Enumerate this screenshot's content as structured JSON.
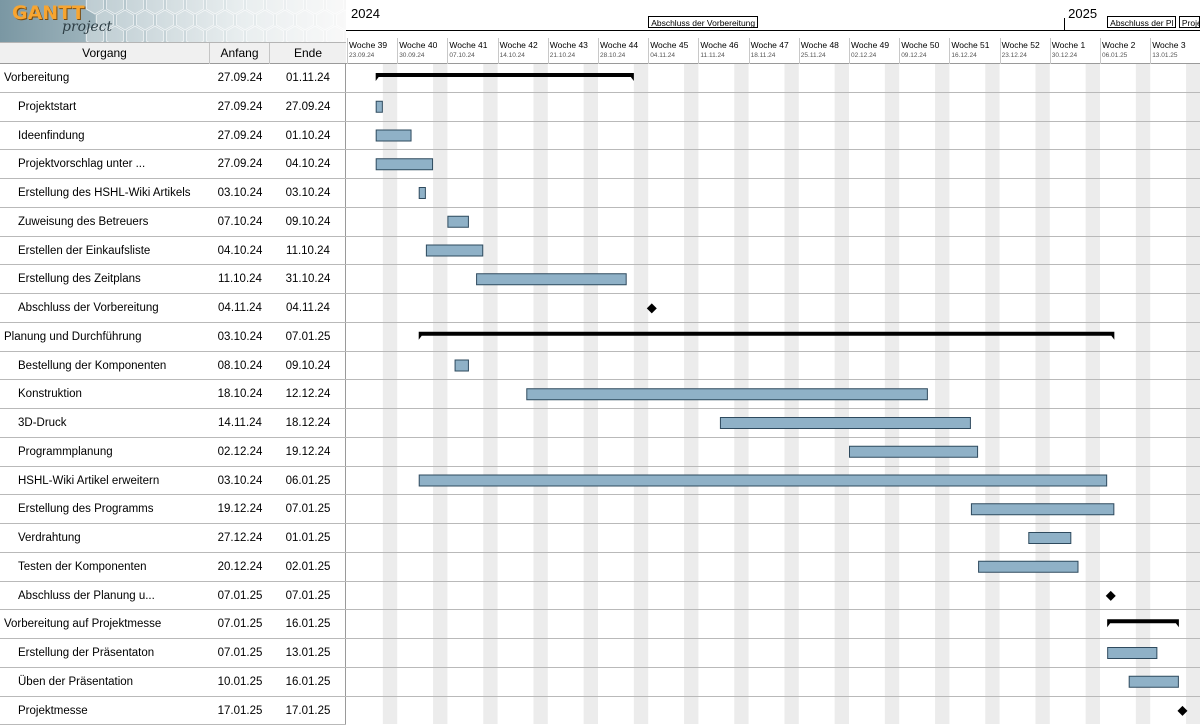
{
  "logo": {
    "line1": "GANTT",
    "line2": "project"
  },
  "table": {
    "headers": {
      "name": "Vorgang",
      "start": "Anfang",
      "end": "Ende"
    },
    "tasks": [
      {
        "name": "Vorbereitung",
        "start": "27.09.24",
        "end": "01.11.24",
        "kind": "summary",
        "level": 0
      },
      {
        "name": "Projektstart",
        "start": "27.09.24",
        "end": "27.09.24",
        "kind": "task",
        "level": 1
      },
      {
        "name": "Ideenfindung",
        "start": "27.09.24",
        "end": "01.10.24",
        "kind": "task",
        "level": 1
      },
      {
        "name": "Projektvorschlag unter ...",
        "start": "27.09.24",
        "end": "04.10.24",
        "kind": "task",
        "level": 1
      },
      {
        "name": "Erstellung des HSHL-Wiki Artikels",
        "start": "03.10.24",
        "end": "03.10.24",
        "kind": "task",
        "level": 1
      },
      {
        "name": "Zuweisung des Betreuers",
        "start": "07.10.24",
        "end": "09.10.24",
        "kind": "task",
        "level": 1
      },
      {
        "name": "Erstellen der Einkaufsliste",
        "start": "04.10.24",
        "end": "11.10.24",
        "kind": "task",
        "level": 1
      },
      {
        "name": "Erstellung des Zeitplans",
        "start": "11.10.24",
        "end": "31.10.24",
        "kind": "task",
        "level": 1
      },
      {
        "name": "Abschluss der Vorbereitung",
        "start": "04.11.24",
        "end": "04.11.24",
        "kind": "milestone",
        "level": 1
      },
      {
        "name": "Planung und Durchführung",
        "start": "03.10.24",
        "end": "07.01.25",
        "kind": "summary",
        "level": 0
      },
      {
        "name": "Bestellung der Komponenten",
        "start": "08.10.24",
        "end": "09.10.24",
        "kind": "task",
        "level": 1
      },
      {
        "name": "Konstruktion",
        "start": "18.10.24",
        "end": "12.12.24",
        "kind": "task",
        "level": 1
      },
      {
        "name": "3D-Druck",
        "start": "14.11.24",
        "end": "18.12.24",
        "kind": "task",
        "level": 1
      },
      {
        "name": "Programmplanung",
        "start": "02.12.24",
        "end": "19.12.24",
        "kind": "task",
        "level": 1
      },
      {
        "name": "HSHL-Wiki Artikel erweitern",
        "start": "03.10.24",
        "end": "06.01.25",
        "kind": "task",
        "level": 1
      },
      {
        "name": "Erstellung des Programms",
        "start": "19.12.24",
        "end": "07.01.25",
        "kind": "task",
        "level": 1
      },
      {
        "name": "Verdrahtung",
        "start": "27.12.24",
        "end": "01.01.25",
        "kind": "task",
        "level": 1
      },
      {
        "name": "Testen der Komponenten",
        "start": "20.12.24",
        "end": "02.01.25",
        "kind": "task",
        "level": 1
      },
      {
        "name": "Abschluss der Planung u...",
        "start": "07.01.25",
        "end": "07.01.25",
        "kind": "milestone",
        "level": 1
      },
      {
        "name": "Vorbereitung auf Projektmesse",
        "start": "07.01.25",
        "end": "16.01.25",
        "kind": "summary",
        "level": 0
      },
      {
        "name": "Erstellung der Präsentaton",
        "start": "07.01.25",
        "end": "13.01.25",
        "kind": "task",
        "level": 1
      },
      {
        "name": "Üben der Präsentation",
        "start": "10.01.25",
        "end": "16.01.25",
        "kind": "task",
        "level": 1
      },
      {
        "name": "Projektmesse",
        "start": "17.01.25",
        "end": "17.01.25",
        "kind": "milestone",
        "level": 1
      }
    ]
  },
  "timeline": {
    "years": [
      {
        "label": "2024"
      },
      {
        "label": "2025"
      }
    ],
    "milestone_flags": [
      {
        "label": "Abschluss der Vorbereitung",
        "date": "04.11.24"
      },
      {
        "label": "Abschluss der Pl",
        "date": "07.01.25"
      },
      {
        "label": "Proje",
        "date": "17.01.25"
      }
    ],
    "weeks": [
      {
        "label": "Woche 39",
        "date": "23.09.24"
      },
      {
        "label": "Woche 40",
        "date": "30.09.24"
      },
      {
        "label": "Woche 41",
        "date": "07.10.24"
      },
      {
        "label": "Woche 42",
        "date": "14.10.24"
      },
      {
        "label": "Woche 43",
        "date": "21.10.24"
      },
      {
        "label": "Woche 44",
        "date": "28.10.24"
      },
      {
        "label": "Woche 45",
        "date": "04.11.24"
      },
      {
        "label": "Woche 46",
        "date": "11.11.24"
      },
      {
        "label": "Woche 47",
        "date": "18.11.24"
      },
      {
        "label": "Woche 48",
        "date": "25.11.24"
      },
      {
        "label": "Woche 49",
        "date": "02.12.24"
      },
      {
        "label": "Woche 50",
        "date": "09.12.24"
      },
      {
        "label": "Woche 51",
        "date": "16.12.24"
      },
      {
        "label": "Woche 52",
        "date": "23.12.24"
      },
      {
        "label": "Woche 1",
        "date": "30.12.24"
      },
      {
        "label": "Woche 2",
        "date": "06.01.25"
      },
      {
        "label": "Woche 3",
        "date": "13.01.25"
      }
    ]
  },
  "colors": {
    "bar_fill": "#8fb1c7",
    "bar_border": "#2e4a5e",
    "summary": "#000000",
    "weekend": "#ececec",
    "row_line": "#b9b9b9"
  }
}
